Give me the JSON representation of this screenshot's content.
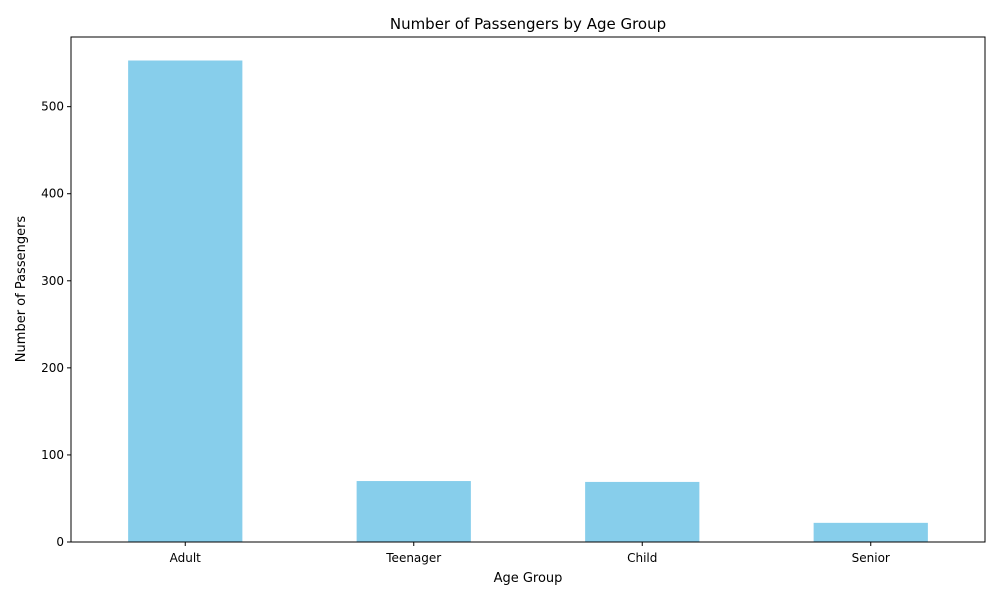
{
  "chart_data": {
    "type": "bar",
    "title": "Number of Passengers by Age Group",
    "xlabel": "Age Group",
    "ylabel": "Number of Passengers",
    "categories": [
      "Adult",
      "Teenager",
      "Child",
      "Senior"
    ],
    "values": [
      553,
      70,
      69,
      22
    ],
    "ylim": [
      0,
      580
    ],
    "yticks": [
      0,
      100,
      200,
      300,
      400,
      500
    ],
    "bar_color": "#87ceeb",
    "grid": false,
    "legend": "none"
  }
}
